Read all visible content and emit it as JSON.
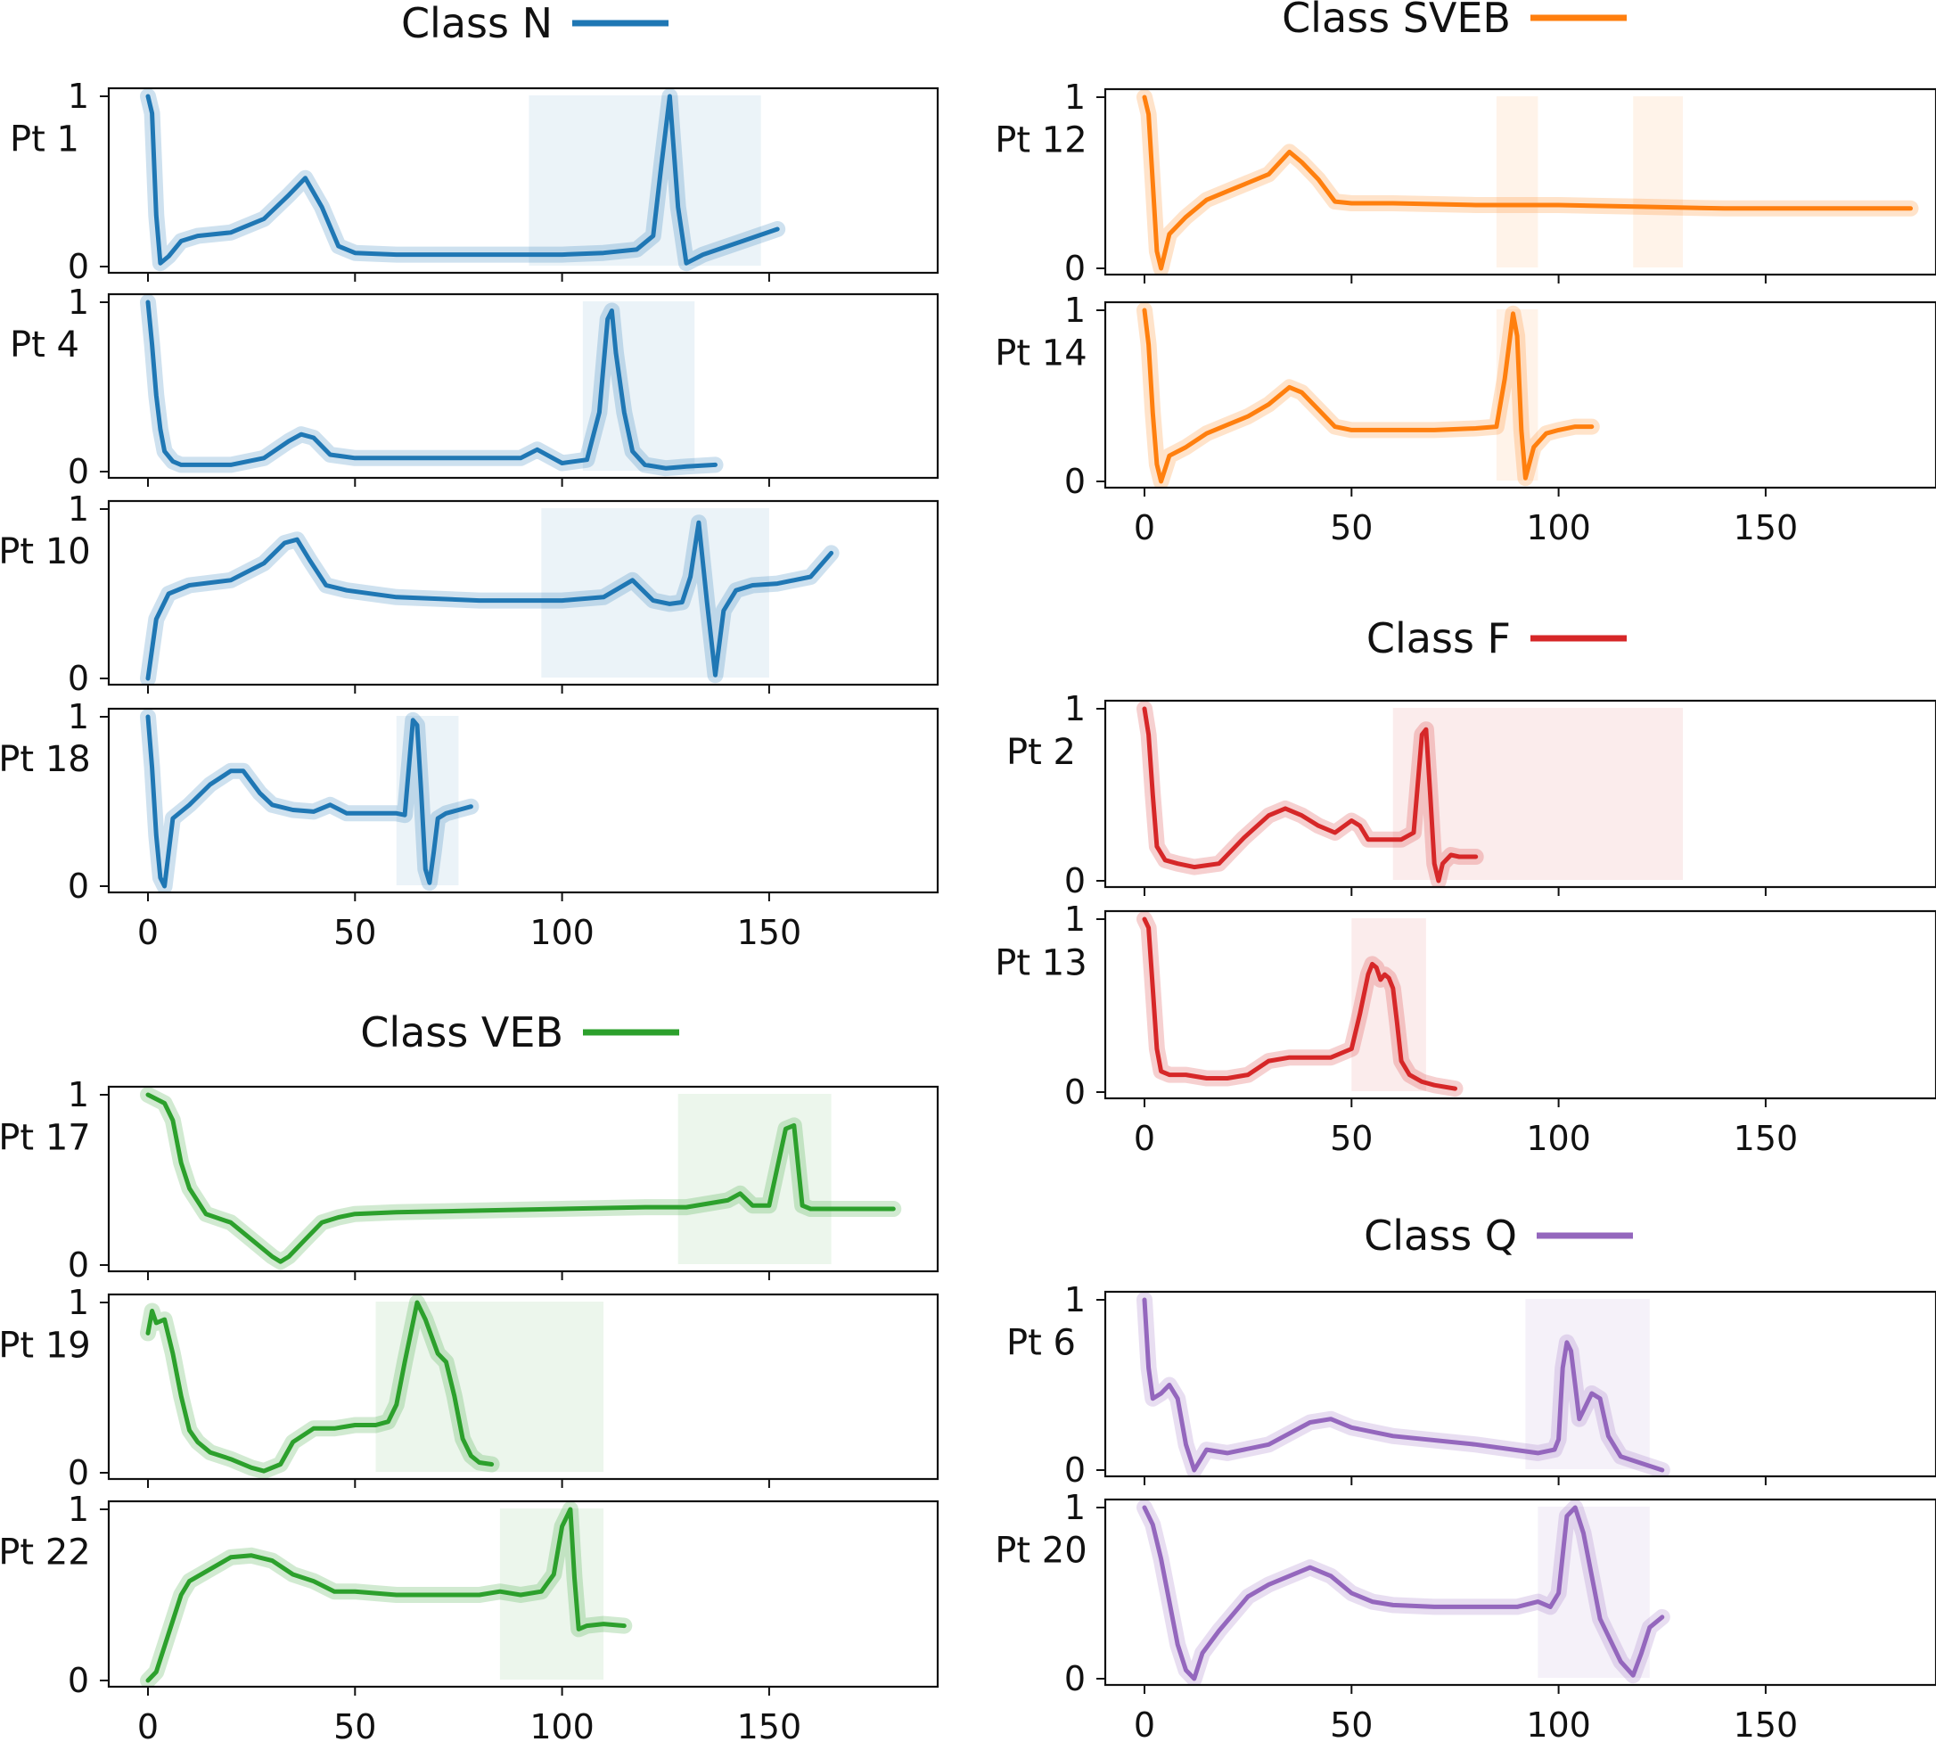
{
  "figure": {
    "groups": [
      {
        "title": "Class N",
        "color": "#1f77b4",
        "panel_ids": [
          "N1",
          "N4",
          "N10",
          "N18"
        ]
      },
      {
        "title": "Class SVEB",
        "color": "#ff7f0e",
        "panel_ids": [
          "S12",
          "S14"
        ]
      },
      {
        "title": "Class F",
        "color": "#d62728",
        "panel_ids": [
          "F2",
          "F13"
        ]
      },
      {
        "title": "Class VEB",
        "color": "#2ca02c",
        "panel_ids": [
          "V17",
          "V19",
          "V22"
        ]
      },
      {
        "title": "Class Q",
        "color": "#9467bd",
        "panel_ids": [
          "Q6",
          "Q20"
        ]
      }
    ]
  },
  "chart_data": [
    {
      "id": "N1",
      "type": "line",
      "label": "Pt 1",
      "class": "Class N",
      "color": "#1f77b4",
      "xlim": [
        -10,
        190
      ],
      "ylim": [
        0,
        1
      ],
      "yticks": [
        "0",
        "1"
      ],
      "xticks": [
        "0",
        "50",
        "100",
        "150"
      ],
      "show_x_tick_labels": false,
      "x": [
        0,
        1,
        2,
        3,
        5,
        8,
        12,
        20,
        28,
        34,
        38,
        42,
        46,
        50,
        60,
        80,
        100,
        110,
        118,
        122,
        124,
        126,
        128,
        130,
        134,
        140,
        152
      ],
      "y": [
        1.0,
        0.9,
        0.3,
        0.02,
        0.06,
        0.15,
        0.18,
        0.2,
        0.28,
        0.42,
        0.52,
        0.35,
        0.12,
        0.08,
        0.07,
        0.07,
        0.07,
        0.08,
        0.1,
        0.18,
        0.6,
        1.0,
        0.35,
        0.02,
        0.07,
        0.12,
        0.22
      ],
      "spread": [
        [
          92,
          148
        ]
      ]
    },
    {
      "id": "N4",
      "type": "line",
      "label": "Pt 4",
      "class": "Class N",
      "color": "#1f77b4",
      "xlim": [
        -10,
        190
      ],
      "ylim": [
        0,
        1
      ],
      "yticks": [
        "0",
        "1"
      ],
      "xticks": [
        "0",
        "50",
        "100",
        "150"
      ],
      "show_x_tick_labels": false,
      "x": [
        0,
        1,
        2,
        3,
        4,
        6,
        8,
        12,
        20,
        28,
        34,
        37,
        40,
        44,
        50,
        60,
        80,
        90,
        94,
        100,
        106,
        109,
        111,
        112,
        113,
        115,
        117,
        120,
        125,
        130,
        137
      ],
      "y": [
        1.0,
        0.75,
        0.45,
        0.25,
        0.12,
        0.06,
        0.04,
        0.04,
        0.04,
        0.08,
        0.18,
        0.22,
        0.2,
        0.1,
        0.08,
        0.08,
        0.08,
        0.08,
        0.13,
        0.05,
        0.07,
        0.35,
        0.9,
        0.95,
        0.7,
        0.35,
        0.12,
        0.04,
        0.02,
        0.03,
        0.04
      ],
      "spread": [
        [
          105,
          132
        ]
      ]
    },
    {
      "id": "N10",
      "type": "line",
      "label": "Pt 10",
      "class": "Class N",
      "color": "#1f77b4",
      "xlim": [
        -10,
        190
      ],
      "ylim": [
        0,
        1
      ],
      "yticks": [
        "0",
        "1"
      ],
      "xticks": [
        "0",
        "50",
        "100",
        "150"
      ],
      "show_x_tick_labels": false,
      "x": [
        0,
        2,
        5,
        10,
        20,
        28,
        33,
        36,
        39,
        43,
        48,
        60,
        80,
        100,
        110,
        117,
        122,
        126,
        129,
        131,
        133,
        135,
        137,
        139,
        142,
        146,
        152,
        160,
        165
      ],
      "y": [
        0.0,
        0.35,
        0.5,
        0.55,
        0.58,
        0.68,
        0.8,
        0.82,
        0.7,
        0.55,
        0.52,
        0.48,
        0.46,
        0.46,
        0.48,
        0.58,
        0.46,
        0.44,
        0.45,
        0.6,
        0.92,
        0.45,
        0.02,
        0.4,
        0.52,
        0.55,
        0.56,
        0.6,
        0.74
      ],
      "spread": [
        [
          95,
          150
        ]
      ]
    },
    {
      "id": "N18",
      "type": "line",
      "label": "Pt 18",
      "class": "Class N",
      "color": "#1f77b4",
      "xlim": [
        -10,
        190
      ],
      "ylim": [
        0,
        1
      ],
      "yticks": [
        "0",
        "1"
      ],
      "xticks": [
        "0",
        "50",
        "100",
        "150"
      ],
      "show_x_tick_labels": true,
      "x": [
        0,
        1,
        2,
        3,
        4,
        5,
        6,
        10,
        15,
        20,
        23,
        27,
        30,
        35,
        40,
        44,
        48,
        55,
        60,
        62,
        63,
        64,
        65,
        66,
        67,
        68,
        69,
        70,
        72,
        75,
        78
      ],
      "y": [
        1.0,
        0.7,
        0.3,
        0.05,
        0.0,
        0.2,
        0.4,
        0.48,
        0.6,
        0.68,
        0.68,
        0.55,
        0.48,
        0.45,
        0.44,
        0.48,
        0.43,
        0.43,
        0.43,
        0.42,
        0.7,
        0.98,
        0.95,
        0.55,
        0.1,
        0.02,
        0.2,
        0.4,
        0.43,
        0.45,
        0.47
      ],
      "spread": [
        [
          60,
          75
        ]
      ]
    },
    {
      "id": "S12",
      "type": "line",
      "label": "Pt 12",
      "class": "Class SVEB",
      "color": "#ff7f0e",
      "xlim": [
        -10,
        190
      ],
      "ylim": [
        0,
        1
      ],
      "yticks": [
        "0",
        "1"
      ],
      "xticks": [
        "0",
        "50",
        "100",
        "150"
      ],
      "show_x_tick_labels": false,
      "x": [
        0,
        1,
        2,
        3,
        4,
        6,
        10,
        15,
        20,
        25,
        30,
        35,
        38,
        42,
        46,
        50,
        60,
        80,
        100,
        120,
        140,
        160,
        180,
        185
      ],
      "y": [
        1.0,
        0.9,
        0.5,
        0.1,
        0.0,
        0.2,
        0.3,
        0.4,
        0.45,
        0.5,
        0.55,
        0.68,
        0.62,
        0.52,
        0.39,
        0.38,
        0.38,
        0.37,
        0.37,
        0.36,
        0.35,
        0.35,
        0.35,
        0.35
      ],
      "spread": [
        [
          85,
          95
        ],
        [
          118,
          130
        ]
      ]
    },
    {
      "id": "S14",
      "type": "line",
      "label": "Pt 14",
      "class": "Class SVEB",
      "color": "#ff7f0e",
      "xlim": [
        -10,
        190
      ],
      "ylim": [
        0,
        1
      ],
      "yticks": [
        "0",
        "1"
      ],
      "xticks": [
        "0",
        "50",
        "100",
        "150"
      ],
      "show_x_tick_labels": true,
      "x": [
        0,
        1,
        2,
        3,
        4,
        6,
        10,
        15,
        20,
        25,
        30,
        35,
        38,
        42,
        46,
        50,
        60,
        70,
        80,
        85,
        87,
        89,
        90,
        91,
        92,
        94,
        97,
        100,
        104,
        108
      ],
      "y": [
        1.0,
        0.8,
        0.4,
        0.1,
        0.0,
        0.15,
        0.2,
        0.28,
        0.33,
        0.38,
        0.45,
        0.55,
        0.52,
        0.42,
        0.32,
        0.3,
        0.3,
        0.3,
        0.31,
        0.32,
        0.6,
        0.98,
        0.85,
        0.3,
        0.02,
        0.2,
        0.28,
        0.3,
        0.32,
        0.32
      ],
      "spread": [
        [
          85,
          95
        ]
      ]
    },
    {
      "id": "F2",
      "type": "line",
      "label": "Pt 2",
      "class": "Class F",
      "color": "#d62728",
      "xlim": [
        -10,
        190
      ],
      "ylim": [
        0,
        1
      ],
      "yticks": [
        "0",
        "1"
      ],
      "xticks": [
        "0",
        "50",
        "100",
        "150"
      ],
      "show_x_tick_labels": false,
      "x": [
        0,
        1,
        2,
        3,
        5,
        8,
        12,
        18,
        24,
        30,
        34,
        38,
        42,
        46,
        50,
        52,
        54,
        58,
        62,
        65,
        67,
        68,
        69,
        70,
        71,
        72,
        74,
        76,
        80
      ],
      "y": [
        1.0,
        0.85,
        0.5,
        0.2,
        0.12,
        0.1,
        0.08,
        0.1,
        0.25,
        0.38,
        0.42,
        0.38,
        0.32,
        0.28,
        0.35,
        0.32,
        0.24,
        0.24,
        0.24,
        0.28,
        0.85,
        0.88,
        0.5,
        0.1,
        0.0,
        0.1,
        0.15,
        0.14,
        0.14
      ],
      "spread": [
        [
          60,
          130
        ]
      ]
    },
    {
      "id": "F13",
      "type": "line",
      "label": "Pt 13",
      "class": "Class F",
      "color": "#d62728",
      "xlim": [
        -10,
        190
      ],
      "ylim": [
        0,
        1
      ],
      "yticks": [
        "0",
        "1"
      ],
      "xticks": [
        "0",
        "50",
        "100",
        "150"
      ],
      "show_x_tick_labels": true,
      "x": [
        0,
        1,
        2,
        3,
        4,
        6,
        10,
        15,
        20,
        25,
        30,
        35,
        40,
        45,
        50,
        52,
        54,
        55,
        56,
        57,
        58,
        59,
        60,
        61,
        62,
        64,
        67,
        70,
        75
      ],
      "y": [
        1.0,
        0.95,
        0.6,
        0.25,
        0.12,
        0.1,
        0.1,
        0.08,
        0.08,
        0.1,
        0.18,
        0.2,
        0.2,
        0.2,
        0.25,
        0.45,
        0.68,
        0.74,
        0.72,
        0.65,
        0.68,
        0.66,
        0.6,
        0.4,
        0.18,
        0.1,
        0.06,
        0.04,
        0.02
      ],
      "spread": [
        [
          50,
          68
        ]
      ]
    },
    {
      "id": "V17",
      "type": "line",
      "label": "Pt 17",
      "class": "Class VEB",
      "color": "#2ca02c",
      "xlim": [
        -10,
        190
      ],
      "ylim": [
        0,
        1
      ],
      "yticks": [
        "0",
        "1"
      ],
      "xticks": [
        "0",
        "50",
        "100",
        "150"
      ],
      "show_x_tick_labels": false,
      "x": [
        0,
        4,
        6,
        8,
        10,
        14,
        20,
        25,
        30,
        32,
        34,
        38,
        42,
        46,
        50,
        60,
        80,
        100,
        120,
        130,
        140,
        143,
        146,
        150,
        154,
        156,
        158,
        160,
        170,
        180
      ],
      "y": [
        1.0,
        0.95,
        0.85,
        0.6,
        0.45,
        0.3,
        0.25,
        0.15,
        0.05,
        0.02,
        0.05,
        0.15,
        0.25,
        0.28,
        0.3,
        0.31,
        0.32,
        0.33,
        0.34,
        0.34,
        0.38,
        0.42,
        0.35,
        0.35,
        0.8,
        0.82,
        0.35,
        0.33,
        0.33,
        0.33
      ],
      "spread": [
        [
          128,
          165
        ]
      ]
    },
    {
      "id": "V19",
      "type": "line",
      "label": "Pt 19",
      "class": "Class VEB",
      "color": "#2ca02c",
      "xlim": [
        -10,
        190
      ],
      "ylim": [
        0,
        1
      ],
      "yticks": [
        "0",
        "1"
      ],
      "xticks": [
        "0",
        "50",
        "100",
        "150"
      ],
      "show_x_tick_labels": false,
      "x": [
        0,
        1,
        2,
        4,
        6,
        8,
        10,
        12,
        15,
        20,
        25,
        28,
        32,
        35,
        40,
        45,
        50,
        55,
        58,
        60,
        62,
        65,
        67,
        70,
        72,
        74,
        76,
        78,
        80,
        83
      ],
      "y": [
        0.82,
        0.95,
        0.88,
        0.9,
        0.7,
        0.45,
        0.25,
        0.18,
        0.12,
        0.08,
        0.03,
        0.01,
        0.05,
        0.18,
        0.26,
        0.26,
        0.28,
        0.28,
        0.3,
        0.4,
        0.65,
        1.0,
        0.9,
        0.7,
        0.65,
        0.45,
        0.2,
        0.1,
        0.06,
        0.05
      ],
      "spread": [
        [
          55,
          110
        ]
      ]
    },
    {
      "id": "V22",
      "type": "line",
      "label": "Pt 22",
      "class": "Class VEB",
      "color": "#2ca02c",
      "xlim": [
        -10,
        190
      ],
      "ylim": [
        0,
        1
      ],
      "yticks": [
        "0",
        "1"
      ],
      "xticks": [
        "0",
        "50",
        "100",
        "150"
      ],
      "show_x_tick_labels": true,
      "x": [
        0,
        2,
        4,
        6,
        8,
        10,
        15,
        20,
        25,
        30,
        35,
        40,
        45,
        50,
        60,
        70,
        80,
        85,
        90,
        95,
        98,
        100,
        102,
        103,
        104,
        106,
        110,
        115
      ],
      "y": [
        0.0,
        0.05,
        0.2,
        0.35,
        0.5,
        0.58,
        0.65,
        0.72,
        0.73,
        0.7,
        0.62,
        0.58,
        0.52,
        0.52,
        0.5,
        0.5,
        0.5,
        0.52,
        0.5,
        0.52,
        0.62,
        0.9,
        1.0,
        0.6,
        0.3,
        0.32,
        0.33,
        0.32
      ],
      "spread": [
        [
          85,
          110
        ]
      ]
    },
    {
      "id": "Q6",
      "type": "line",
      "label": "Pt 6",
      "class": "Class Q",
      "color": "#9467bd",
      "xlim": [
        -10,
        190
      ],
      "ylim": [
        0,
        1
      ],
      "yticks": [
        "0",
        "1"
      ],
      "xticks": [
        "0",
        "50",
        "100",
        "150"
      ],
      "show_x_tick_labels": false,
      "x": [
        0,
        1,
        2,
        4,
        6,
        8,
        10,
        12,
        15,
        20,
        30,
        40,
        45,
        50,
        60,
        80,
        95,
        99,
        100,
        101,
        102,
        103,
        104,
        105,
        106,
        108,
        110,
        112,
        115,
        120,
        125
      ],
      "y": [
        1.0,
        0.6,
        0.42,
        0.45,
        0.5,
        0.42,
        0.15,
        0.0,
        0.12,
        0.1,
        0.15,
        0.28,
        0.3,
        0.25,
        0.2,
        0.15,
        0.1,
        0.12,
        0.18,
        0.6,
        0.75,
        0.7,
        0.5,
        0.3,
        0.35,
        0.45,
        0.42,
        0.2,
        0.08,
        0.04,
        0.0
      ],
      "spread": [
        [
          92,
          122
        ]
      ]
    },
    {
      "id": "Q20",
      "type": "line",
      "label": "Pt 20",
      "class": "Class Q",
      "color": "#9467bd",
      "xlim": [
        -10,
        190
      ],
      "ylim": [
        0,
        1
      ],
      "yticks": [
        "0",
        "1"
      ],
      "xticks": [
        "0",
        "50",
        "100",
        "150"
      ],
      "show_x_tick_labels": true,
      "x": [
        0,
        2,
        4,
        6,
        8,
        10,
        12,
        14,
        18,
        25,
        30,
        35,
        40,
        45,
        50,
        55,
        60,
        70,
        80,
        90,
        95,
        98,
        100,
        102,
        104,
        106,
        108,
        110,
        115,
        118,
        120,
        122,
        125
      ],
      "y": [
        1.0,
        0.9,
        0.7,
        0.45,
        0.2,
        0.05,
        0.0,
        0.15,
        0.28,
        0.48,
        0.55,
        0.6,
        0.65,
        0.6,
        0.5,
        0.45,
        0.43,
        0.42,
        0.42,
        0.42,
        0.45,
        0.42,
        0.5,
        0.95,
        1.0,
        0.85,
        0.6,
        0.35,
        0.1,
        0.02,
        0.15,
        0.3,
        0.36
      ],
      "spread": [
        [
          95,
          122
        ]
      ]
    }
  ]
}
